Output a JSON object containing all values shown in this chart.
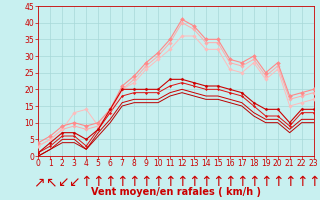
{
  "title": "",
  "xlabel": "Vent moyen/en rafales ( km/h )",
  "background_color": "#c8f0f0",
  "grid_color": "#a8d8d8",
  "xlim": [
    0,
    23
  ],
  "ylim": [
    0,
    45
  ],
  "yticks": [
    0,
    5,
    10,
    15,
    20,
    25,
    30,
    35,
    40,
    45
  ],
  "xticks": [
    0,
    1,
    2,
    3,
    4,
    5,
    6,
    7,
    8,
    9,
    10,
    11,
    12,
    13,
    14,
    15,
    16,
    17,
    18,
    19,
    20,
    21,
    22,
    23
  ],
  "lines": [
    {
      "x": [
        0,
        1,
        2,
        3,
        4,
        5,
        6,
        7,
        8,
        9,
        10,
        11,
        12,
        13,
        14,
        15,
        16,
        17,
        18,
        19,
        20,
        21,
        22,
        23
      ],
      "y": [
        1,
        4,
        7,
        7,
        5,
        8,
        14,
        20,
        20,
        20,
        20,
        23,
        23,
        22,
        21,
        21,
        20,
        19,
        16,
        14,
        14,
        10,
        14,
        14
      ],
      "color": "#cc0000",
      "linewidth": 0.8,
      "marker": "D",
      "markersize": 1.5,
      "zorder": 5
    },
    {
      "x": [
        0,
        1,
        2,
        3,
        4,
        5,
        6,
        7,
        8,
        9,
        10,
        11,
        12,
        13,
        14,
        15,
        16,
        17,
        18,
        19,
        20,
        21,
        22,
        23
      ],
      "y": [
        1,
        3,
        6,
        6,
        3,
        8,
        13,
        18,
        19,
        19,
        19,
        21,
        22,
        21,
        20,
        20,
        19,
        18,
        15,
        12,
        12,
        9,
        13,
        13
      ],
      "color": "#dd1111",
      "linewidth": 0.7,
      "marker": "D",
      "markersize": 1.2,
      "zorder": 4
    },
    {
      "x": [
        0,
        1,
        2,
        3,
        4,
        5,
        6,
        7,
        8,
        9,
        10,
        11,
        12,
        13,
        14,
        15,
        16,
        17,
        18,
        19,
        20,
        21,
        22,
        23
      ],
      "y": [
        0,
        2,
        5,
        5,
        2,
        7,
        11,
        16,
        17,
        17,
        17,
        19,
        20,
        19,
        18,
        18,
        17,
        16,
        13,
        11,
        11,
        8,
        11,
        11
      ],
      "color": "#cc0000",
      "linewidth": 0.7,
      "marker": null,
      "markersize": 0,
      "zorder": 3
    },
    {
      "x": [
        0,
        1,
        2,
        3,
        4,
        5,
        6,
        7,
        8,
        9,
        10,
        11,
        12,
        13,
        14,
        15,
        16,
        17,
        18,
        19,
        20,
        21,
        22,
        23
      ],
      "y": [
        0,
        2,
        4,
        4,
        2,
        6,
        10,
        15,
        16,
        16,
        16,
        18,
        19,
        18,
        17,
        17,
        16,
        15,
        12,
        10,
        10,
        7,
        10,
        10
      ],
      "color": "#bb0000",
      "linewidth": 0.7,
      "marker": null,
      "markersize": 0,
      "zorder": 3
    },
    {
      "x": [
        0,
        1,
        2,
        3,
        4,
        5,
        6,
        7,
        8,
        9,
        10,
        11,
        12,
        13,
        14,
        15,
        16,
        17,
        18,
        19,
        20,
        21,
        22,
        23
      ],
      "y": [
        4,
        6,
        9,
        10,
        9,
        10,
        14,
        21,
        24,
        28,
        31,
        35,
        41,
        39,
        35,
        35,
        29,
        28,
        30,
        25,
        28,
        18,
        19,
        20
      ],
      "color": "#ff8888",
      "linewidth": 0.8,
      "marker": "D",
      "markersize": 2.0,
      "zorder": 4
    },
    {
      "x": [
        0,
        1,
        2,
        3,
        4,
        5,
        6,
        7,
        8,
        9,
        10,
        11,
        12,
        13,
        14,
        15,
        16,
        17,
        18,
        19,
        20,
        21,
        22,
        23
      ],
      "y": [
        3,
        5,
        8,
        9,
        8,
        9,
        13,
        20,
        23,
        27,
        30,
        34,
        40,
        38,
        34,
        34,
        28,
        27,
        29,
        24,
        27,
        17,
        18,
        19
      ],
      "color": "#ffaaaa",
      "linewidth": 0.7,
      "marker": "D",
      "markersize": 1.8,
      "zorder": 3
    },
    {
      "x": [
        0,
        1,
        2,
        3,
        4,
        5,
        6,
        7,
        8,
        9,
        10,
        11,
        12,
        13,
        14,
        15,
        16,
        17,
        18,
        19,
        20,
        21,
        22,
        23
      ],
      "y": [
        3,
        5,
        8,
        13,
        14,
        9,
        13,
        20,
        22,
        26,
        29,
        32,
        36,
        36,
        32,
        32,
        26,
        25,
        28,
        23,
        26,
        15,
        16,
        17
      ],
      "color": "#ffbbbb",
      "linewidth": 0.7,
      "marker": "D",
      "markersize": 1.8,
      "zorder": 3
    }
  ],
  "wind_symbols": [
    "↗",
    "↖",
    "↙",
    "↙",
    "↑",
    "↑",
    "↑",
    "↑",
    "↑",
    "↑",
    "↑",
    "↑",
    "↑",
    "↑",
    "↑",
    "↑",
    "↑",
    "↑",
    "↑",
    "↑",
    "↑",
    "↑",
    "↑",
    "↑"
  ],
  "axis_label_color": "#cc0000",
  "tick_color": "#cc0000",
  "tick_fontsize": 5.5,
  "xlabel_fontsize": 7.0
}
